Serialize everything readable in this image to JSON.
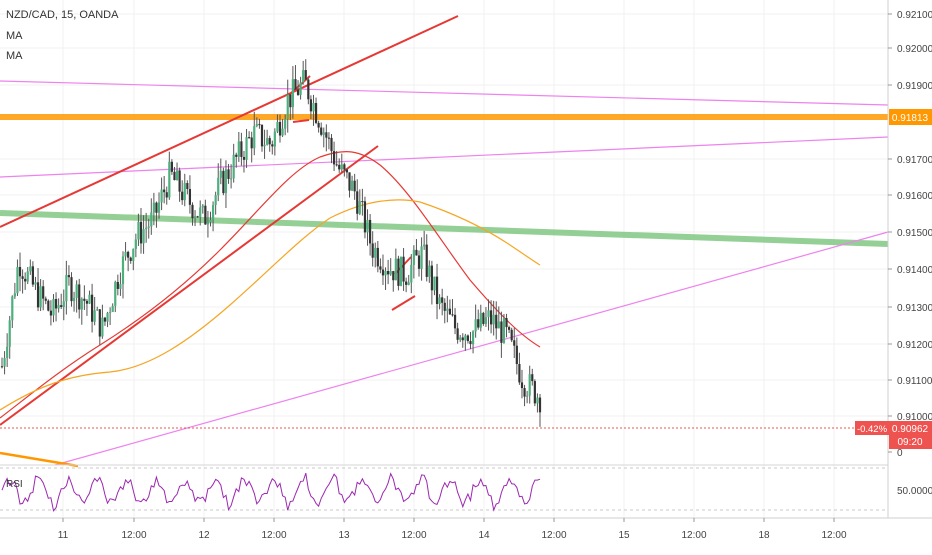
{
  "legend": {
    "symbol": "NZD/CAD, 15, OANDA",
    "indicator_1": "MA",
    "indicator_2": "MA"
  },
  "price_badge": {
    "change": "-0.42%",
    "price": "0.90962",
    "countdown": "09:20"
  },
  "level_badge": "0.91813",
  "rsi": {
    "label": "RSI",
    "level_label": "50.0000"
  },
  "colors": {
    "candle_up": "#4caf7d",
    "candle_down": "#333333",
    "trendline_red": "#e53935",
    "trendline_magenta": "#ee82ee",
    "level_orange": "#ff9800",
    "band_green": "#81c784",
    "ma_fast": "#e53935",
    "ma_slow": "#f5a623",
    "rsi_line": "#9c27b0",
    "badge_red": "#ef5350"
  },
  "chart_data": {
    "type": "candlestick",
    "title": "NZD/CAD, 15, OANDA",
    "y_tick_labels": [
      "0.92100",
      "0.92000",
      "0.91900",
      "0.91700",
      "0.91600",
      "0.91500",
      "0.91400",
      "0.91300",
      "0.91200",
      "0.91100",
      "0.91000",
      "0"
    ],
    "y_tick_values": [
      0.921,
      0.92,
      0.919,
      0.917,
      0.916,
      0.915,
      0.914,
      0.913,
      0.912,
      0.911,
      0.91,
      null
    ],
    "x_tick_labels": [
      "11",
      "12:00",
      "12",
      "12:00",
      "13",
      "12:00",
      "14",
      "12:00",
      "15",
      "12:00",
      "18",
      "12:00"
    ],
    "ylim": [
      0.9085,
      0.9215
    ],
    "grid": true,
    "last_price": 0.90962,
    "change_percent": -0.42,
    "horizontal_level": 0.91813,
    "series": [
      {
        "name": "NZD/CAD",
        "description": "approximate closes sampled along the visible price path, left to right",
        "close": [
          0.9107,
          0.9138,
          0.9129,
          0.9122,
          0.9131,
          0.9126,
          0.9118,
          0.9135,
          0.9145,
          0.915,
          0.9163,
          0.9156,
          0.915,
          0.916,
          0.9168,
          0.9175,
          0.9172,
          0.9185,
          0.919,
          0.9178,
          0.9165,
          0.9158,
          0.9142,
          0.9136,
          0.9134,
          0.914,
          0.9125,
          0.9118,
          0.9117,
          0.9121,
          0.9116,
          0.9103,
          0.9098
        ]
      }
    ]
  }
}
